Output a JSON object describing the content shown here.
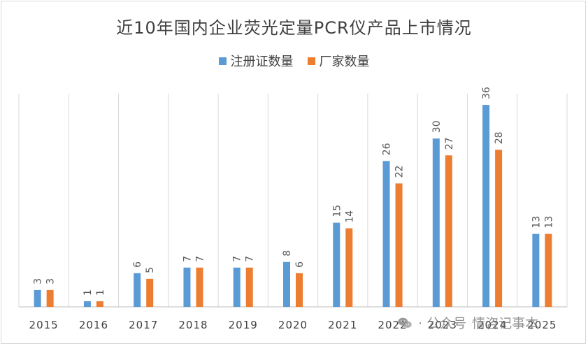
{
  "chart_data": {
    "type": "bar",
    "title": "近10年国内企业荧光定量PCR仪产品上市情况",
    "categories": [
      "2015",
      "2016",
      "2017",
      "2018",
      "2019",
      "2020",
      "2021",
      "2022",
      "2023",
      "2024",
      "2025"
    ],
    "series": [
      {
        "name": "注册证数量",
        "color": "#5B9BD5",
        "values": [
          3,
          1,
          6,
          7,
          7,
          8,
          15,
          26,
          30,
          36,
          13
        ]
      },
      {
        "name": "厂家数量",
        "color": "#ED7D31",
        "values": [
          3,
          1,
          5,
          7,
          7,
          6,
          14,
          22,
          27,
          28,
          13
        ]
      }
    ],
    "ylim": [
      0,
      38
    ],
    "legend_position": "top",
    "grid": "vertical category separators"
  },
  "watermark": {
    "separator": "·",
    "account": "公众号",
    "name": "情咨记事本"
  }
}
